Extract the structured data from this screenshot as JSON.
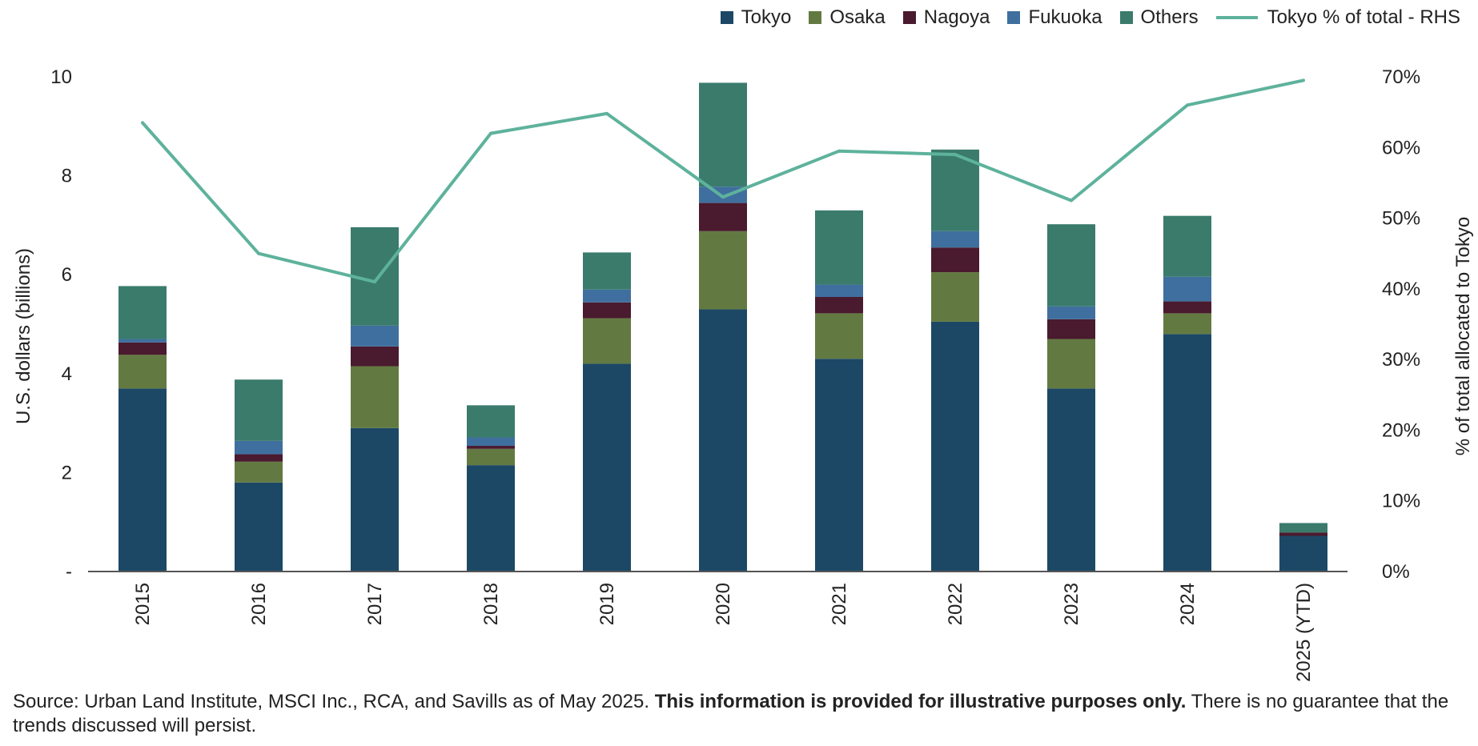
{
  "chart_data": {
    "type": "bar",
    "stacked": true,
    "categories": [
      "2015",
      "2016",
      "2017",
      "2018",
      "2019",
      "2020",
      "2021",
      "2022",
      "2023",
      "2024",
      "2025 (YTD)"
    ],
    "series": [
      {
        "name": "Tokyo",
        "color": "#1c4866",
        "values": [
          3.7,
          1.8,
          2.9,
          2.15,
          4.2,
          5.3,
          4.3,
          5.05,
          3.7,
          4.8,
          0.72
        ]
      },
      {
        "name": "Osaka",
        "color": "#627a41",
        "values": [
          0.68,
          0.42,
          1.25,
          0.33,
          0.92,
          1.58,
          0.92,
          1.0,
          1.0,
          0.42,
          0.0
        ]
      },
      {
        "name": "Nagoya",
        "color": "#4a1a2e",
        "values": [
          0.25,
          0.15,
          0.4,
          0.06,
          0.32,
          0.57,
          0.33,
          0.5,
          0.4,
          0.24,
          0.07
        ]
      },
      {
        "name": "Fukuoka",
        "color": "#3f6f9e",
        "values": [
          0.07,
          0.27,
          0.42,
          0.17,
          0.26,
          0.33,
          0.25,
          0.33,
          0.26,
          0.5,
          0.0
        ]
      },
      {
        "name": "Others",
        "color": "#3a7b6c",
        "values": [
          1.07,
          1.24,
          1.99,
          0.65,
          0.75,
          2.1,
          1.5,
          1.65,
          1.66,
          1.23,
          0.19
        ]
      }
    ],
    "line_series": {
      "name": "Tokyo % of total - RHS",
      "color": "#5eb29c",
      "axis": "right",
      "values": [
        63.5,
        45,
        41,
        62,
        64.8,
        53,
        59.5,
        59,
        52.5,
        66,
        69.5
      ]
    },
    "ylabel": "U.S. dollars (billions)",
    "ylabel_right": "% of total allocated to Tokyo",
    "ylim": [
      0,
      10
    ],
    "ylim_right": [
      0,
      70
    ],
    "yticks": [
      "-",
      "2",
      "4",
      "6",
      "8",
      "10"
    ],
    "yticks_right": [
      "0%",
      "10%",
      "20%",
      "30%",
      "40%",
      "50%",
      "60%",
      "70%"
    ]
  },
  "legend": [
    {
      "label": "Tokyo"
    },
    {
      "label": "Osaka"
    },
    {
      "label": "Nagoya"
    },
    {
      "label": "Fukuoka"
    },
    {
      "label": "Others"
    },
    {
      "label": "Tokyo % of total - RHS"
    }
  ],
  "footer": {
    "source": "Source: Urban Land Institute, MSCI Inc., RCA, and Savills as of May 2025. ",
    "bold": "This information is provided for illustrative purposes only.",
    "tail": " There is no guarantee that the trends discussed will persist."
  }
}
